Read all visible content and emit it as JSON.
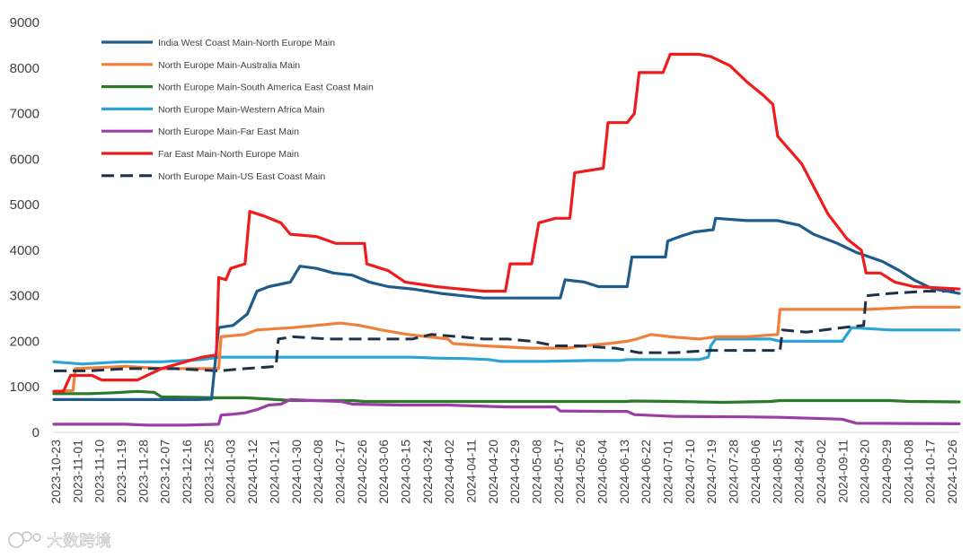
{
  "chart_data": {
    "type": "line",
    "title": "",
    "xlabel": "",
    "ylabel": "",
    "ylim": [
      0,
      9000
    ],
    "y_ticks": [
      "0",
      "1000",
      "2000",
      "3000",
      "4000",
      "5000",
      "6000",
      "7000",
      "8000",
      "9000"
    ],
    "x_ticks": [
      "2023-10-23",
      "2023-11-01",
      "2023-11-10",
      "2023-11-19",
      "2023-11-28",
      "2023-12-07",
      "2023-12-16",
      "2023-12-25",
      "2024-01-03",
      "2024-01-12",
      "2024-01-21",
      "2024-01-30",
      "2024-02-08",
      "2024-02-17",
      "2024-02-26",
      "2024-03-06",
      "2024-03-15",
      "2024-03-24",
      "2024-04-02",
      "2024-04-11",
      "2024-04-20",
      "2024-04-29",
      "2024-05-08",
      "2024-05-17",
      "2024-05-26",
      "2024-06-04",
      "2024-06-13",
      "2024-06-22",
      "2024-07-01",
      "2024-07-10",
      "2024-07-19",
      "2024-07-28",
      "2024-08-06",
      "2024-08-15",
      "2024-08-24",
      "2024-09-02",
      "2024-09-11",
      "2024-09-20",
      "2024-09-29",
      "2024-10-08",
      "2024-10-17",
      "2024-10-26"
    ],
    "x_note": "x values are days since 2023-10-23",
    "x_max_day": 379,
    "grid": false,
    "legend_position": "top-left",
    "series": [
      {
        "name": "India West Coast Main-North Europe Main",
        "color": "#1f5c8b",
        "dash": false,
        "points": [
          [
            0,
            720
          ],
          [
            60,
            720
          ],
          [
            66,
            730
          ],
          [
            69,
            2300
          ],
          [
            75,
            2350
          ],
          [
            81,
            2600
          ],
          [
            85,
            3100
          ],
          [
            90,
            3200
          ],
          [
            99,
            3300
          ],
          [
            103,
            3650
          ],
          [
            110,
            3600
          ],
          [
            117,
            3500
          ],
          [
            125,
            3450
          ],
          [
            132,
            3300
          ],
          [
            140,
            3200
          ],
          [
            150,
            3150
          ],
          [
            162,
            3050
          ],
          [
            180,
            2950
          ],
          [
            198,
            2950
          ],
          [
            212,
            2950
          ],
          [
            214,
            3350
          ],
          [
            222,
            3300
          ],
          [
            228,
            3200
          ],
          [
            240,
            3200
          ],
          [
            242,
            3850
          ],
          [
            250,
            3850
          ],
          [
            256,
            3850
          ],
          [
            257,
            4200
          ],
          [
            262,
            4300
          ],
          [
            268,
            4400
          ],
          [
            276,
            4450
          ],
          [
            277,
            4700
          ],
          [
            290,
            4650
          ],
          [
            303,
            4650
          ],
          [
            312,
            4550
          ],
          [
            318,
            4350
          ],
          [
            328,
            4150
          ],
          [
            336,
            3950
          ],
          [
            347,
            3750
          ],
          [
            354,
            3550
          ],
          [
            360,
            3350
          ],
          [
            368,
            3150
          ],
          [
            374,
            3100
          ],
          [
            379,
            3050
          ]
        ]
      },
      {
        "name": "North Europe Main-Australia Main",
        "color": "#f07f3c",
        "dash": false,
        "points": [
          [
            0,
            900
          ],
          [
            8,
            920
          ],
          [
            9,
            1400
          ],
          [
            30,
            1450
          ],
          [
            45,
            1400
          ],
          [
            69,
            1400
          ],
          [
            70,
            2100
          ],
          [
            80,
            2150
          ],
          [
            85,
            2250
          ],
          [
            100,
            2300
          ],
          [
            110,
            2350
          ],
          [
            120,
            2400
          ],
          [
            128,
            2350
          ],
          [
            137,
            2250
          ],
          [
            148,
            2150
          ],
          [
            165,
            2050
          ],
          [
            167,
            1950
          ],
          [
            180,
            1900
          ],
          [
            200,
            1850
          ],
          [
            215,
            1850
          ],
          [
            222,
            1900
          ],
          [
            232,
            1950
          ],
          [
            240,
            2000
          ],
          [
            244,
            2050
          ],
          [
            250,
            2150
          ],
          [
            258,
            2100
          ],
          [
            270,
            2050
          ],
          [
            277,
            2100
          ],
          [
            290,
            2100
          ],
          [
            303,
            2150
          ],
          [
            304,
            2700
          ],
          [
            320,
            2700
          ],
          [
            340,
            2700
          ],
          [
            360,
            2750
          ],
          [
            379,
            2750
          ]
        ]
      },
      {
        "name": "North Europe Main-South America East Coast Main",
        "color": "#2a7a2a",
        "dash": false,
        "points": [
          [
            0,
            850
          ],
          [
            15,
            850
          ],
          [
            25,
            870
          ],
          [
            35,
            900
          ],
          [
            42,
            880
          ],
          [
            45,
            780
          ],
          [
            69,
            760
          ],
          [
            80,
            760
          ],
          [
            90,
            730
          ],
          [
            100,
            700
          ],
          [
            115,
            700
          ],
          [
            125,
            700
          ],
          [
            130,
            680
          ],
          [
            165,
            680
          ],
          [
            190,
            680
          ],
          [
            210,
            680
          ],
          [
            240,
            680
          ],
          [
            242,
            690
          ],
          [
            260,
            680
          ],
          [
            280,
            660
          ],
          [
            300,
            680
          ],
          [
            304,
            700
          ],
          [
            330,
            700
          ],
          [
            350,
            700
          ],
          [
            358,
            680
          ],
          [
            379,
            670
          ]
        ]
      },
      {
        "name": "North Europe Main-Western Africa Main",
        "color": "#2aa4d5",
        "dash": false,
        "points": [
          [
            0,
            1550
          ],
          [
            12,
            1500
          ],
          [
            28,
            1550
          ],
          [
            45,
            1550
          ],
          [
            55,
            1580
          ],
          [
            62,
            1600
          ],
          [
            69,
            1650
          ],
          [
            80,
            1650
          ],
          [
            95,
            1650
          ],
          [
            110,
            1650
          ],
          [
            130,
            1650
          ],
          [
            150,
            1650
          ],
          [
            160,
            1630
          ],
          [
            172,
            1620
          ],
          [
            182,
            1600
          ],
          [
            187,
            1560
          ],
          [
            205,
            1560
          ],
          [
            225,
            1580
          ],
          [
            237,
            1580
          ],
          [
            240,
            1600
          ],
          [
            270,
            1600
          ],
          [
            274,
            1650
          ],
          [
            275,
            1900
          ],
          [
            277,
            2050
          ],
          [
            285,
            2050
          ],
          [
            295,
            2050
          ],
          [
            300,
            2050
          ],
          [
            304,
            2000
          ],
          [
            330,
            2000
          ],
          [
            334,
            2300
          ],
          [
            350,
            2250
          ],
          [
            379,
            2250
          ]
        ]
      },
      {
        "name": "North Europe Main-Far East Main",
        "color": "#9b3da6",
        "dash": false,
        "points": [
          [
            0,
            180
          ],
          [
            10,
            180
          ],
          [
            30,
            180
          ],
          [
            39,
            160
          ],
          [
            55,
            160
          ],
          [
            69,
            180
          ],
          [
            70,
            380
          ],
          [
            75,
            400
          ],
          [
            80,
            430
          ],
          [
            85,
            500
          ],
          [
            90,
            600
          ],
          [
            95,
            620
          ],
          [
            99,
            720
          ],
          [
            109,
            700
          ],
          [
            120,
            680
          ],
          [
            125,
            620
          ],
          [
            145,
            600
          ],
          [
            150,
            600
          ],
          [
            165,
            600
          ],
          [
            170,
            590
          ],
          [
            190,
            560
          ],
          [
            205,
            560
          ],
          [
            210,
            560
          ],
          [
            212,
            470
          ],
          [
            230,
            460
          ],
          [
            240,
            460
          ],
          [
            243,
            390
          ],
          [
            260,
            350
          ],
          [
            290,
            340
          ],
          [
            304,
            330
          ],
          [
            330,
            290
          ],
          [
            336,
            200
          ],
          [
            379,
            190
          ]
        ]
      },
      {
        "name": "Far East Main-North Europe Main",
        "color": "#ee1c1c",
        "dash": false,
        "points": [
          [
            0,
            900
          ],
          [
            4,
            900
          ],
          [
            7,
            1250
          ],
          [
            16,
            1250
          ],
          [
            20,
            1150
          ],
          [
            35,
            1150
          ],
          [
            45,
            1400
          ],
          [
            55,
            1550
          ],
          [
            62,
            1650
          ],
          [
            68,
            1700
          ],
          [
            69,
            3400
          ],
          [
            72,
            3350
          ],
          [
            74,
            3600
          ],
          [
            80,
            3700
          ],
          [
            82,
            4850
          ],
          [
            88,
            4750
          ],
          [
            95,
            4600
          ],
          [
            99,
            4350
          ],
          [
            110,
            4300
          ],
          [
            118,
            4150
          ],
          [
            130,
            4150
          ],
          [
            131,
            3700
          ],
          [
            140,
            3550
          ],
          [
            147,
            3300
          ],
          [
            160,
            3200
          ],
          [
            170,
            3150
          ],
          [
            180,
            3100
          ],
          [
            189,
            3100
          ],
          [
            191,
            3700
          ],
          [
            200,
            3700
          ],
          [
            203,
            4600
          ],
          [
            210,
            4700
          ],
          [
            216,
            4700
          ],
          [
            218,
            5700
          ],
          [
            230,
            5800
          ],
          [
            232,
            6800
          ],
          [
            240,
            6800
          ],
          [
            243,
            7000
          ],
          [
            245,
            7900
          ],
          [
            255,
            7900
          ],
          [
            258,
            8300
          ],
          [
            270,
            8300
          ],
          [
            275,
            8250
          ],
          [
            283,
            8050
          ],
          [
            290,
            7700
          ],
          [
            297,
            7400
          ],
          [
            301,
            7200
          ],
          [
            303,
            6500
          ],
          [
            313,
            5900
          ],
          [
            318,
            5400
          ],
          [
            324,
            4800
          ],
          [
            332,
            4250
          ],
          [
            338,
            4000
          ],
          [
            340,
            3500
          ],
          [
            346,
            3500
          ],
          [
            352,
            3300
          ],
          [
            360,
            3200
          ],
          [
            379,
            3150
          ]
        ]
      },
      {
        "name": "North Europe Main-US East Coast Main",
        "color": "#1d3148",
        "dash": true,
        "points": [
          [
            0,
            1350
          ],
          [
            15,
            1350
          ],
          [
            30,
            1400
          ],
          [
            50,
            1400
          ],
          [
            69,
            1350
          ],
          [
            80,
            1400
          ],
          [
            93,
            1450
          ],
          [
            94,
            2050
          ],
          [
            100,
            2100
          ],
          [
            115,
            2050
          ],
          [
            130,
            2050
          ],
          [
            150,
            2050
          ],
          [
            158,
            2150
          ],
          [
            170,
            2100
          ],
          [
            180,
            2050
          ],
          [
            190,
            2050
          ],
          [
            200,
            2000
          ],
          [
            210,
            1900
          ],
          [
            220,
            1900
          ],
          [
            235,
            1850
          ],
          [
            245,
            1750
          ],
          [
            260,
            1750
          ],
          [
            275,
            1800
          ],
          [
            290,
            1800
          ],
          [
            304,
            1800
          ],
          [
            305,
            2250
          ],
          [
            315,
            2200
          ],
          [
            330,
            2300
          ],
          [
            339,
            2350
          ],
          [
            340,
            3000
          ],
          [
            350,
            3050
          ],
          [
            365,
            3100
          ],
          [
            379,
            3100
          ]
        ]
      }
    ]
  },
  "watermark": {
    "text": "大数跨境"
  }
}
